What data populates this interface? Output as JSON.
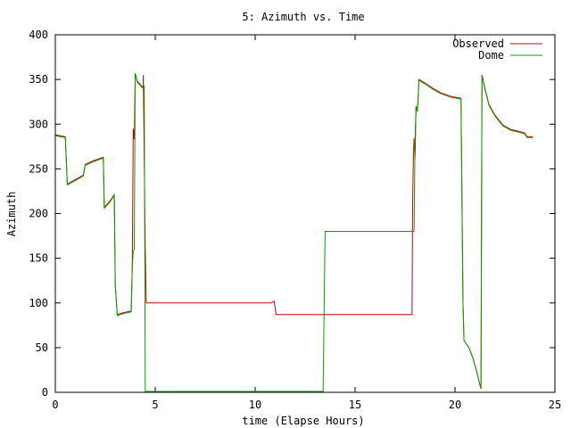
{
  "chart_data": {
    "type": "line",
    "title": "5: Azimuth vs. Time",
    "xlabel": "time (Elapse Hours)",
    "ylabel": "Azimuth",
    "xlim": [
      0,
      25
    ],
    "ylim": [
      0,
      400
    ],
    "x_ticks": [
      0,
      5,
      10,
      15,
      20,
      25
    ],
    "y_ticks": [
      0,
      50,
      100,
      150,
      200,
      250,
      300,
      350,
      400
    ],
    "grid": false,
    "legend_position": "top-right",
    "series": [
      {
        "name": "Observed",
        "color": "#cc0000",
        "points": [
          [
            0,
            288
          ],
          [
            0.5,
            286
          ],
          [
            0.6,
            233
          ],
          [
            1.0,
            238
          ],
          [
            1.4,
            243
          ],
          [
            1.5,
            255
          ],
          [
            1.9,
            259
          ],
          [
            2.4,
            263
          ],
          [
            2.45,
            207
          ],
          [
            2.7,
            213
          ],
          [
            2.95,
            221
          ],
          [
            3.0,
            120
          ],
          [
            3.1,
            87
          ],
          [
            3.4,
            89
          ],
          [
            3.8,
            91
          ],
          [
            3.85,
            140
          ],
          [
            3.9,
            295
          ],
          [
            3.95,
            283
          ],
          [
            4.0,
            357
          ],
          [
            4.1,
            348
          ],
          [
            4.3,
            343
          ],
          [
            4.4,
            341
          ],
          [
            4.4,
            355
          ],
          [
            4.45,
            260
          ],
          [
            4.5,
            163
          ],
          [
            4.55,
            100
          ],
          [
            6.0,
            100
          ],
          [
            8.0,
            100
          ],
          [
            10.0,
            100
          ],
          [
            10.8,
            100
          ],
          [
            10.95,
            102
          ],
          [
            11.05,
            87
          ],
          [
            13.0,
            87
          ],
          [
            15.0,
            87
          ],
          [
            17.0,
            87
          ],
          [
            17.85,
            87
          ],
          [
            17.88,
            215
          ],
          [
            17.92,
            265
          ],
          [
            17.95,
            284
          ],
          [
            18.0,
            262
          ],
          [
            18.05,
            320
          ],
          [
            18.12,
            315
          ],
          [
            18.2,
            350
          ],
          [
            18.5,
            346
          ],
          [
            18.9,
            340
          ],
          [
            19.3,
            335
          ],
          [
            19.8,
            331
          ],
          [
            20.3,
            329
          ],
          [
            20.35,
            210
          ],
          [
            20.4,
            100
          ],
          [
            20.45,
            58
          ],
          [
            20.7,
            50
          ],
          [
            20.9,
            38
          ],
          [
            21.1,
            22
          ],
          [
            21.25,
            8
          ],
          [
            21.3,
            4
          ],
          [
            21.35,
            355
          ],
          [
            21.5,
            340
          ],
          [
            21.7,
            322
          ],
          [
            22.0,
            310
          ],
          [
            22.4,
            299
          ],
          [
            22.8,
            294
          ],
          [
            23.2,
            292
          ],
          [
            23.5,
            290
          ],
          [
            23.6,
            286
          ],
          [
            23.9,
            286
          ]
        ]
      },
      {
        "name": "Dome",
        "color": "#00a000",
        "points": [
          [
            0,
            287
          ],
          [
            0.5,
            285
          ],
          [
            0.6,
            232
          ],
          [
            1.0,
            237
          ],
          [
            1.4,
            242
          ],
          [
            1.5,
            254
          ],
          [
            1.9,
            258
          ],
          [
            2.4,
            262
          ],
          [
            2.45,
            206
          ],
          [
            2.7,
            212
          ],
          [
            2.95,
            220
          ],
          [
            3.0,
            120
          ],
          [
            3.1,
            86
          ],
          [
            3.4,
            88
          ],
          [
            3.8,
            90
          ],
          [
            3.85,
            140
          ],
          [
            3.9,
            158
          ],
          [
            3.95,
            160
          ],
          [
            4.0,
            357
          ],
          [
            4.1,
            347
          ],
          [
            4.3,
            342
          ],
          [
            4.4,
            340
          ],
          [
            4.45,
            343
          ],
          [
            4.5,
            1
          ],
          [
            6.0,
            1
          ],
          [
            8.0,
            1
          ],
          [
            10.0,
            1
          ],
          [
            12.0,
            1
          ],
          [
            13.4,
            1
          ],
          [
            13.5,
            180
          ],
          [
            15.0,
            180
          ],
          [
            17.0,
            180
          ],
          [
            17.9,
            180
          ],
          [
            17.95,
            180
          ],
          [
            18.0,
            283
          ],
          [
            18.05,
            319
          ],
          [
            18.12,
            314
          ],
          [
            18.2,
            349
          ],
          [
            18.5,
            345
          ],
          [
            18.9,
            339
          ],
          [
            19.3,
            334
          ],
          [
            19.8,
            330
          ],
          [
            20.3,
            328
          ],
          [
            20.35,
            210
          ],
          [
            20.4,
            100
          ],
          [
            20.45,
            58
          ],
          [
            20.7,
            50
          ],
          [
            20.9,
            38
          ],
          [
            21.1,
            22
          ],
          [
            21.25,
            8
          ],
          [
            21.3,
            4
          ],
          [
            21.35,
            355
          ],
          [
            21.5,
            339
          ],
          [
            21.7,
            321
          ],
          [
            22.0,
            309
          ],
          [
            22.4,
            298
          ],
          [
            22.8,
            293
          ],
          [
            23.2,
            291
          ],
          [
            23.5,
            289
          ],
          [
            23.6,
            285
          ],
          [
            23.9,
            285
          ]
        ]
      }
    ]
  }
}
